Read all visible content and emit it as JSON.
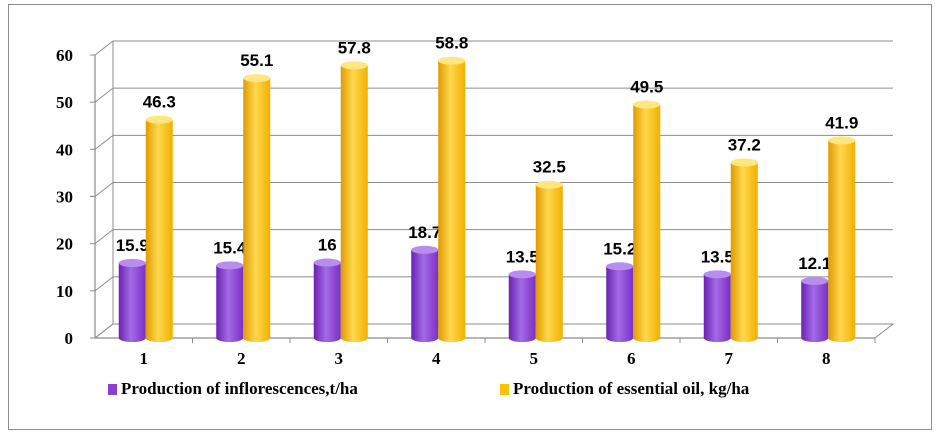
{
  "chart_data": {
    "type": "bar",
    "style": "3d-cylinder",
    "categories": [
      "1",
      "2",
      "3",
      "4",
      "5",
      "6",
      "7",
      "8"
    ],
    "series": [
      {
        "name": "Production of inflorescences,t/ha",
        "values": [
          15.9,
          15.4,
          16,
          18.7,
          13.5,
          15.2,
          13.5,
          12.1
        ],
        "labels": [
          "15.9",
          "15.4",
          "16",
          "18.7",
          "13.5",
          "15.2",
          "13.5",
          "12.1"
        ],
        "color": "#8a3fd1"
      },
      {
        "name": "Production of essential oil, kg/ha",
        "values": [
          46.3,
          55.1,
          57.8,
          58.8,
          32.5,
          49.5,
          37.2,
          41.9
        ],
        "labels": [
          "46.3",
          "55.1",
          "57.8",
          "58.8",
          "32.5",
          "49.5",
          "37.2",
          "41.9"
        ],
        "color": "#ffc000"
      }
    ],
    "ylim": [
      0,
      60
    ],
    "yticks": [
      "0",
      "10",
      "20",
      "30",
      "40",
      "50",
      "60"
    ],
    "grid": true,
    "legend_position": "bottom"
  }
}
